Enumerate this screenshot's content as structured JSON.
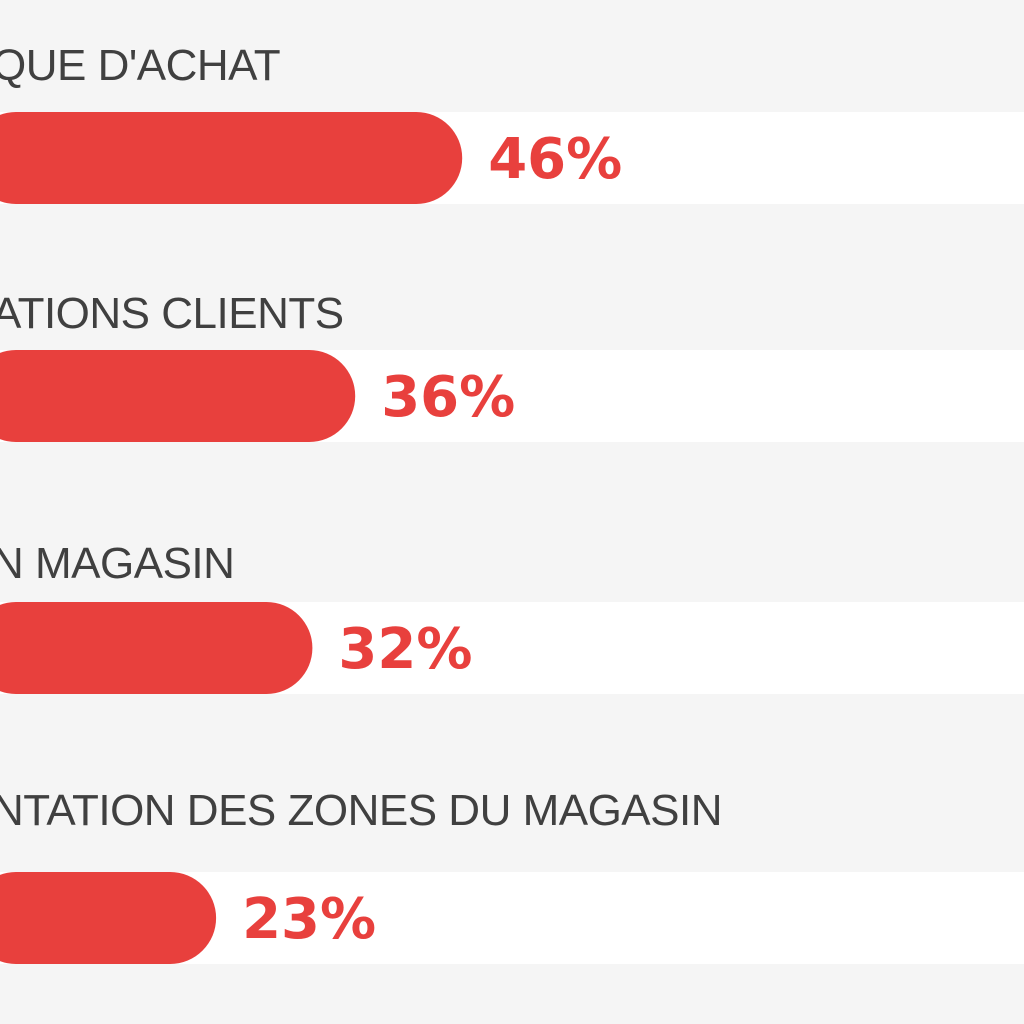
{
  "chart_data": {
    "type": "bar",
    "orientation": "horizontal",
    "categories": [
      "QUE D'ACHAT",
      "ATIONS CLIENTS",
      "N MAGASIN",
      "NTATION DES ZONES DU MAGASIN"
    ],
    "values": [
      46,
      36,
      32,
      23
    ],
    "value_labels": [
      "46%",
      "36%",
      "32%",
      "23%"
    ],
    "unit": "%",
    "xlim": [
      0,
      100
    ],
    "grid": false,
    "legend": "none",
    "colors": {
      "bar": "#e8403d",
      "track": "#ffffff",
      "background": "#f5f5f5",
      "category_text": "#404040",
      "value_text": "#e8403d"
    }
  }
}
